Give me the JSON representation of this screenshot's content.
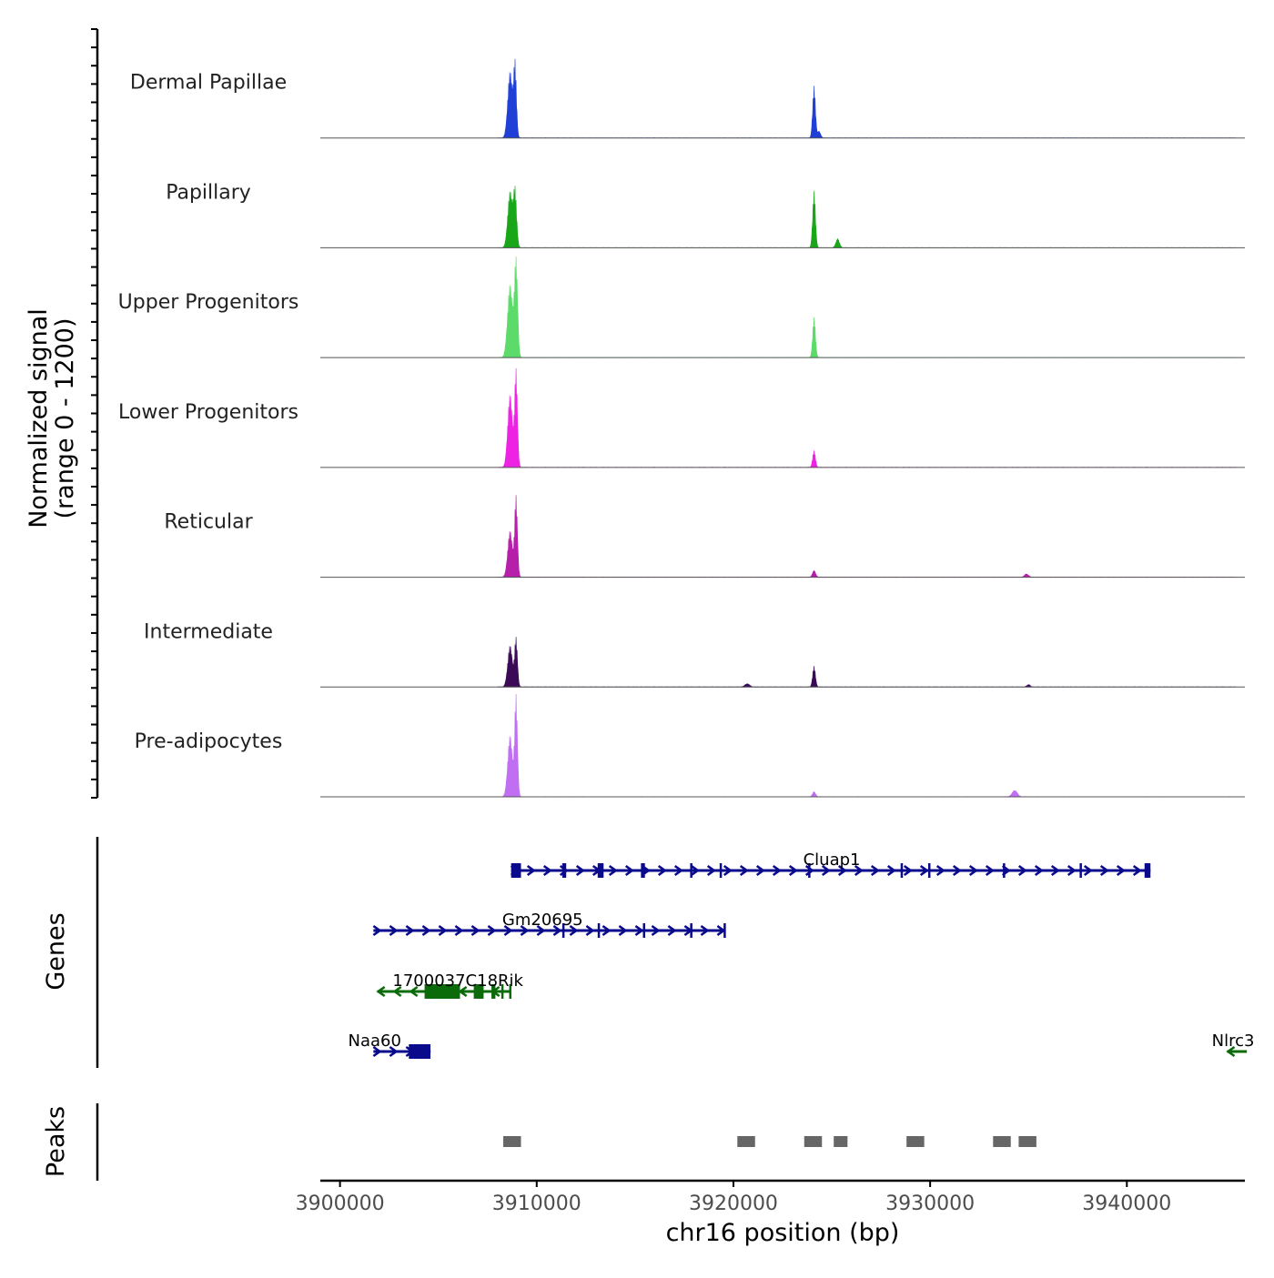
{
  "chart_data": {
    "type": "area",
    "title": "",
    "chromosome": "chr16",
    "xlabel": "chr16 position (bp)",
    "xlim": [
      3899000,
      3946000
    ],
    "xticks": [
      3900000,
      3910000,
      3920000,
      3930000,
      3940000
    ],
    "xtick_labels": [
      "3900000",
      "3910000",
      "3920000",
      "3930000",
      "3940000"
    ],
    "signal_ylabel_line1": "Normalized signal",
    "signal_ylabel_line2": "(range 0 - 1200)",
    "ylim": [
      0,
      1200
    ],
    "genes_label": "Genes",
    "peaks_label": "Peaks",
    "tracks": [
      {
        "name": "Dermal Papillae",
        "color": "#1f3fd6",
        "peaks": [
          [
            3908650,
            800,
            120
          ],
          [
            3908900,
            850,
            70
          ],
          [
            3924100,
            620,
            70
          ],
          [
            3924350,
            80,
            80
          ]
        ]
      },
      {
        "name": "Papillary",
        "color": "#19a619",
        "peaks": [
          [
            3908650,
            680,
            120
          ],
          [
            3908900,
            660,
            80
          ],
          [
            3924100,
            680,
            70
          ],
          [
            3925300,
            110,
            90
          ]
        ]
      },
      {
        "name": "Upper Progenitors",
        "color": "#5cdb6a",
        "peaks": [
          [
            3908650,
            880,
            130
          ],
          [
            3908950,
            1150,
            80
          ],
          [
            3924100,
            480,
            70
          ]
        ]
      },
      {
        "name": "Lower Progenitors",
        "color": "#ee22e2",
        "peaks": [
          [
            3908650,
            880,
            120
          ],
          [
            3908950,
            1150,
            70
          ],
          [
            3924100,
            200,
            70
          ]
        ]
      },
      {
        "name": "Reticular",
        "color": "#b51faa",
        "peaks": [
          [
            3908650,
            560,
            120
          ],
          [
            3908950,
            960,
            70
          ],
          [
            3924100,
            80,
            80
          ],
          [
            3934900,
            40,
            100
          ]
        ]
      },
      {
        "name": "Intermediate",
        "color": "#3b0a57",
        "peaks": [
          [
            3908650,
            500,
            120
          ],
          [
            3908950,
            580,
            70
          ],
          [
            3920700,
            40,
            120
          ],
          [
            3924100,
            250,
            70
          ],
          [
            3935000,
            30,
            80
          ]
        ]
      },
      {
        "name": "Pre-adipocytes",
        "color": "#c06ef2",
        "peaks": [
          [
            3908650,
            740,
            120
          ],
          [
            3908950,
            1200,
            70
          ],
          [
            3924100,
            60,
            80
          ],
          [
            3934300,
            80,
            130
          ]
        ]
      }
    ],
    "genes": [
      {
        "name": "Cluap1",
        "strand": "+",
        "color": "#0a0a8c",
        "start": 3908700,
        "end": 3941200,
        "row": 0,
        "exons": [
          [
            3908700,
            3909200
          ],
          [
            3911300,
            3911500
          ],
          [
            3913100,
            3913400
          ],
          [
            3915300,
            3915500
          ],
          [
            3917800,
            3917900
          ],
          [
            3919300,
            3919400
          ],
          [
            3923800,
            3923900
          ],
          [
            3928500,
            3928600
          ],
          [
            3929900,
            3930000
          ],
          [
            3933700,
            3933800
          ],
          [
            3937600,
            3937650
          ],
          [
            3940900,
            3941200
          ]
        ]
      },
      {
        "name": "Gm20695",
        "strand": "+",
        "color": "#0a0a8c",
        "start": 3901700,
        "end": 3919600,
        "row": 1,
        "exons": [
          [
            3911300,
            3911400
          ],
          [
            3913100,
            3913200
          ],
          [
            3915400,
            3915500
          ],
          [
            3917800,
            3917900
          ],
          [
            3919500,
            3919600
          ]
        ]
      },
      {
        "name": "1700037C18Rik",
        "strand": "-",
        "color": "#0b6b0b",
        "start": 3901900,
        "end": 3908700,
        "row": 2,
        "exons": [
          [
            3904300,
            3906100
          ],
          [
            3906800,
            3907300
          ],
          [
            3907700,
            3907900
          ],
          [
            3908200,
            3908300
          ],
          [
            3908600,
            3908700
          ]
        ]
      },
      {
        "name": "Naa60",
        "strand": "+",
        "color": "#0a0a8c",
        "start": 3901700,
        "end": 3904600,
        "row": 3,
        "exons": [
          [
            3903500,
            3904600
          ]
        ]
      },
      {
        "name": "Nlrc3",
        "strand": "-",
        "color": "#0b6b0b",
        "start": 3945100,
        "end": 3946100,
        "row": 3,
        "exons": []
      }
    ],
    "peak_regions": [
      [
        3908300,
        3909200
      ],
      [
        3920200,
        3921100
      ],
      [
        3923600,
        3924500
      ],
      [
        3925100,
        3925800
      ],
      [
        3928800,
        3929700
      ],
      [
        3933200,
        3934100
      ],
      [
        3934500,
        3935400
      ]
    ]
  }
}
